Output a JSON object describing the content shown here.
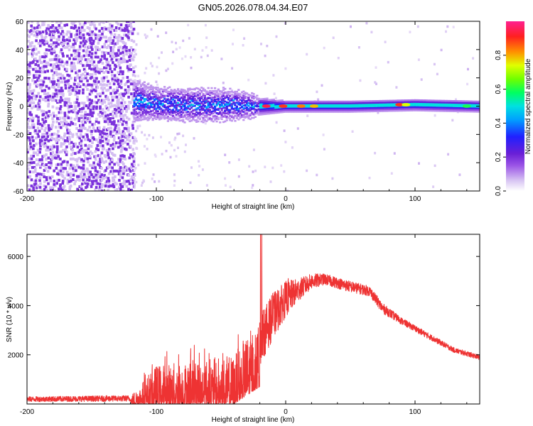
{
  "figure_title": "GN05.2026.078.04.34.E07",
  "colors": {
    "snr_line": "#ee3333",
    "axis": "#000000",
    "background": "#ffffff",
    "noise_purple": "#7a2fe0",
    "noise_light": "#d9c6f3"
  },
  "chart_data": [
    {
      "id": "spectrogram",
      "type": "heatmap",
      "title": "",
      "xlabel": "Height of straight line (km)",
      "ylabel": "Frequency (Hz)",
      "xlim": [
        -200,
        150
      ],
      "ylim": [
        -60,
        60
      ],
      "xticks": [
        -200,
        -100,
        0,
        100
      ],
      "yticks": [
        -60,
        -40,
        -20,
        0,
        20,
        40,
        60
      ],
      "colorbar": {
        "label": "Normalized spectral amplitude",
        "range": [
          0,
          1
        ],
        "ticks": [
          0.0,
          0.2,
          0.4,
          0.6,
          0.8
        ],
        "tick_labels": [
          "0.0",
          "0.2",
          "0.4",
          "0.6",
          "0.8"
        ],
        "colormap": [
          "#ffffff",
          "#d9c6f3",
          "#9b55e6",
          "#6a1fd6",
          "#2020ff",
          "#00a0ff",
          "#00e0e0",
          "#00ff60",
          "#70ff00",
          "#e0ff00",
          "#ff9000",
          "#ff2020",
          "#ff2090"
        ]
      },
      "regions": [
        {
          "description": "broadband noise",
          "x_range": [
            -200,
            -117
          ],
          "freq_range": [
            -60,
            60
          ],
          "amplitude": 0.2
        },
        {
          "description": "sparse scatter",
          "x_range": [
            -117,
            150
          ],
          "freq_range": [
            -60,
            60
          ],
          "amplitude": 0.05
        },
        {
          "description": "signal band",
          "x_range": [
            -117,
            150
          ],
          "center_freq": 0,
          "amplitude": 0.45
        }
      ],
      "band_center_hz": [
        {
          "x": -117,
          "y": 4
        },
        {
          "x": -100,
          "y": 2
        },
        {
          "x": -80,
          "y": 1
        },
        {
          "x": -60,
          "y": 1
        },
        {
          "x": -40,
          "y": 1
        },
        {
          "x": -20,
          "y": 0
        },
        {
          "x": 0,
          "y": 0
        },
        {
          "x": 50,
          "y": 0
        },
        {
          "x": 100,
          "y": 1
        },
        {
          "x": 150,
          "y": 0
        }
      ],
      "band_halfwidth_hz": [
        {
          "x": -117,
          "y": 14
        },
        {
          "x": -100,
          "y": 11
        },
        {
          "x": -50,
          "y": 11
        },
        {
          "x": -30,
          "y": 9
        },
        {
          "x": -20,
          "y": 6
        },
        {
          "x": 0,
          "y": 4
        },
        {
          "x": 150,
          "y": 4
        }
      ],
      "peaks": [
        {
          "x": -15,
          "y": 0,
          "amplitude": 0.95
        },
        {
          "x": -2,
          "y": 0,
          "amplitude": 0.9
        },
        {
          "x": 12,
          "y": 0,
          "amplitude": 0.85
        },
        {
          "x": 22,
          "y": 0,
          "amplitude": 0.8
        },
        {
          "x": 88,
          "y": 1,
          "amplitude": 0.9
        },
        {
          "x": 93,
          "y": 1,
          "amplitude": 0.75
        },
        {
          "x": 140,
          "y": 0,
          "amplitude": 0.6
        }
      ]
    },
    {
      "id": "snr",
      "type": "line",
      "title": "",
      "xlabel": "Height of straight line (km)",
      "ylabel": "SNR (10 * v/v)",
      "xlim": [
        -200,
        150
      ],
      "ylim": [
        0,
        6900
      ],
      "xticks": [
        -200,
        -100,
        0,
        100
      ],
      "yticks": [
        2000,
        4000,
        6000
      ],
      "series": [
        {
          "name": "SNR",
          "envelope_lower": [
            {
              "x": -200,
              "y": 0
            },
            {
              "x": -120,
              "y": 0
            },
            {
              "x": -100,
              "y": 0
            },
            {
              "x": -40,
              "y": 0
            },
            {
              "x": -20,
              "y": 700
            },
            {
              "x": -10,
              "y": 1800
            },
            {
              "x": 0,
              "y": 2900
            },
            {
              "x": 10,
              "y": 3800
            },
            {
              "x": 20,
              "y": 4400
            },
            {
              "x": 30,
              "y": 4650
            },
            {
              "x": 50,
              "y": 4350
            },
            {
              "x": 65,
              "y": 4200
            },
            {
              "x": 75,
              "y": 3500
            },
            {
              "x": 90,
              "y": 3100
            },
            {
              "x": 110,
              "y": 2550
            },
            {
              "x": 130,
              "y": 2000
            },
            {
              "x": 150,
              "y": 1700
            }
          ],
          "envelope_upper": [
            {
              "x": -200,
              "y": 300
            },
            {
              "x": -120,
              "y": 350
            },
            {
              "x": -100,
              "y": 1600
            },
            {
              "x": -40,
              "y": 2000
            },
            {
              "x": -20,
              "y": 3600
            },
            {
              "x": -10,
              "y": 4500
            },
            {
              "x": 0,
              "y": 5000
            },
            {
              "x": 10,
              "y": 5100
            },
            {
              "x": 20,
              "y": 5300
            },
            {
              "x": 30,
              "y": 5300
            },
            {
              "x": 50,
              "y": 5000
            },
            {
              "x": 65,
              "y": 4800
            },
            {
              "x": 75,
              "y": 4100
            },
            {
              "x": 90,
              "y": 3500
            },
            {
              "x": 110,
              "y": 2900
            },
            {
              "x": 130,
              "y": 2300
            },
            {
              "x": 150,
              "y": 2000
            }
          ],
          "spikes": [
            {
              "x": -19.5,
              "y": 6900
            },
            {
              "x": -18.5,
              "y": 6900
            },
            {
              "x": -10,
              "y": 4500
            },
            {
              "x": 2,
              "y": 5100
            }
          ]
        }
      ]
    }
  ]
}
